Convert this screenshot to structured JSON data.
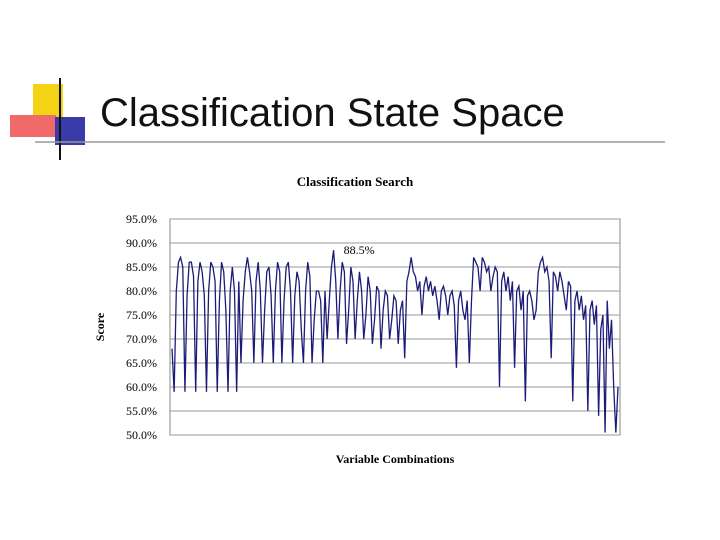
{
  "slide_title": "Classification State Space",
  "chart_data": {
    "type": "line",
    "title": "Classification Search",
    "xlabel": "Variable Combinations",
    "ylabel": "Score",
    "color": "#1c1c78",
    "grid": true,
    "ylim": [
      50,
      95
    ],
    "yticks": [
      {
        "value": 50,
        "label": "50.0%"
      },
      {
        "value": 55,
        "label": "55.0%"
      },
      {
        "value": 60,
        "label": "60.0%"
      },
      {
        "value": 65,
        "label": "65.0%"
      },
      {
        "value": 70,
        "label": "70.0%"
      },
      {
        "value": 75,
        "label": "75.0%"
      },
      {
        "value": 80,
        "label": "80.0%"
      },
      {
        "value": 85,
        "label": "85.0%"
      },
      {
        "value": 90,
        "label": "90.0%"
      },
      {
        "value": 95,
        "label": "95.0%"
      }
    ],
    "annotations": [
      {
        "label": "88.5%",
        "value": 88.5
      }
    ],
    "values": [
      68,
      59,
      80,
      86,
      87,
      85,
      59,
      79,
      86,
      86,
      83,
      59,
      82,
      86,
      84,
      79,
      59,
      80,
      86,
      85,
      82,
      59,
      78,
      86,
      84,
      76,
      59,
      80,
      85,
      80,
      59,
      82,
      65,
      78,
      84,
      87,
      84,
      80,
      65,
      82,
      86,
      80,
      65,
      76,
      84,
      85,
      79,
      65,
      80,
      86,
      84,
      65,
      78,
      85,
      86,
      80,
      65,
      79,
      84,
      82,
      72,
      65,
      80,
      86,
      83,
      65,
      74,
      80,
      80,
      78,
      65,
      80,
      70,
      78,
      85,
      88.5,
      82,
      70,
      80,
      86,
      84,
      69,
      76,
      85,
      82,
      70,
      78,
      84,
      80,
      70,
      75,
      83,
      80,
      69,
      74,
      81,
      80,
      68,
      76,
      80,
      79,
      70,
      74,
      79,
      78,
      69,
      76,
      78,
      66,
      82,
      84,
      87,
      84,
      83,
      80,
      82,
      75,
      81,
      83,
      80,
      82,
      79,
      81,
      78,
      74,
      80,
      81,
      79,
      75,
      79,
      80,
      77,
      64,
      78,
      80,
      76,
      74,
      78,
      65,
      78,
      87,
      86,
      85,
      80,
      87,
      86,
      84,
      85,
      80,
      83,
      85,
      84,
      60,
      82,
      84,
      80,
      83,
      78,
      82,
      64,
      80,
      81,
      76,
      80,
      57,
      79,
      80,
      78,
      74,
      76,
      84,
      86,
      87,
      84,
      85,
      82,
      66,
      84,
      83,
      80,
      84,
      82,
      79,
      76,
      82,
      81,
      57,
      78,
      80,
      76,
      79,
      74,
      77,
      55,
      76,
      78,
      73,
      77,
      54,
      72,
      75,
      50.5,
      78,
      68,
      74,
      60,
      50.5,
      60
    ]
  }
}
